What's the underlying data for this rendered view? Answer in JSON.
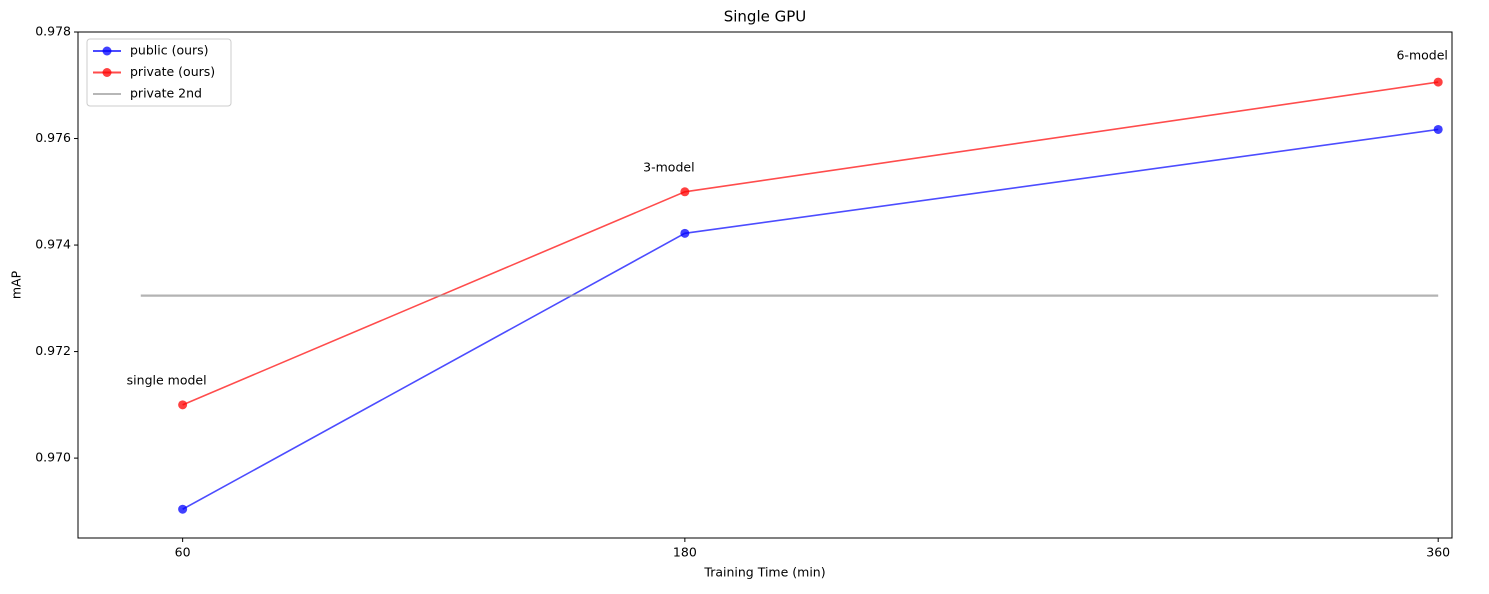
{
  "chart_data": {
    "type": "line",
    "title": "Single GPU",
    "xlabel": "Training Time (min)",
    "ylabel": "mAP",
    "xlim": [
      35,
      363.3
    ],
    "xticks": [
      60,
      180,
      360
    ],
    "ylim": [
      0.9685,
      0.978
    ],
    "yticks": [
      {
        "value": 0.97,
        "label": "0.970"
      },
      {
        "value": 0.972,
        "label": "0.972"
      },
      {
        "value": 0.974,
        "label": "0.974"
      },
      {
        "value": 0.976,
        "label": "0.976"
      },
      {
        "value": 0.978,
        "label": "0.978"
      }
    ],
    "legend": "upper left",
    "series": [
      {
        "name": "public (ours)",
        "color": "#0000ff",
        "x": [
          60,
          180,
          360
        ],
        "values": [
          0.96904,
          0.97422,
          0.97617
        ],
        "markers": true
      },
      {
        "name": "private (ours)",
        "color": "#ff0000",
        "x": [
          60,
          180,
          360
        ],
        "values": [
          0.971,
          0.975,
          0.97706
        ],
        "markers": true
      },
      {
        "name": "private 2nd",
        "color": "#999999",
        "x": [
          50,
          360
        ],
        "values": [
          0.97305,
          0.97305
        ],
        "markers": false
      }
    ],
    "annotations": [
      {
        "text": "single model",
        "x": 60,
        "y": 0.9713
      },
      {
        "text": "3-model",
        "x": 180,
        "y": 0.9753
      },
      {
        "text": "6-model",
        "x": 360,
        "y": 0.9774
      }
    ]
  }
}
